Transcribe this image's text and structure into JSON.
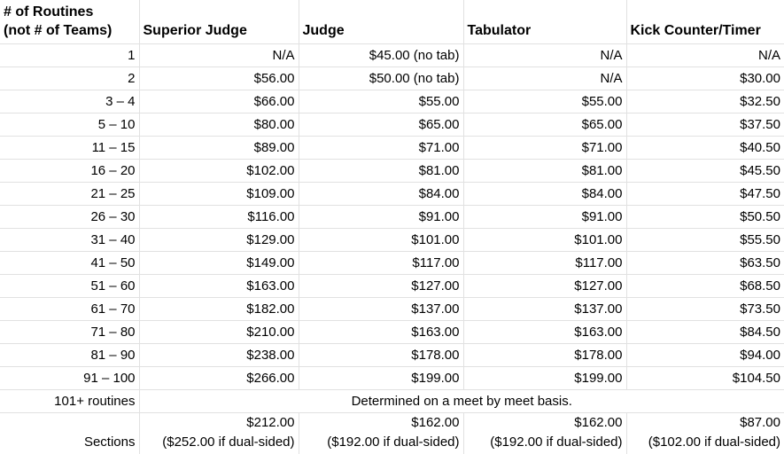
{
  "table": {
    "header": {
      "routines_line1": "# of Routines",
      "routines_line2": "(not # of Teams)",
      "superior_judge": "Superior Judge",
      "judge": "Judge",
      "tabulator": "Tabulator",
      "kick_counter": "Kick Counter/Timer"
    },
    "rows": [
      {
        "range": "1",
        "superior": "N/A",
        "judge": "$45.00 (no tab)",
        "tabulator": "N/A",
        "kick": "N/A"
      },
      {
        "range": "2",
        "superior": "$56.00",
        "judge": "$50.00 (no tab)",
        "tabulator": "N/A",
        "kick": "$30.00"
      },
      {
        "range": "3 – 4",
        "superior": "$66.00",
        "judge": "$55.00",
        "tabulator": "$55.00",
        "kick": "$32.50"
      },
      {
        "range": "5 – 10",
        "superior": "$80.00",
        "judge": "$65.00",
        "tabulator": "$65.00",
        "kick": "$37.50"
      },
      {
        "range": "11 – 15",
        "superior": "$89.00",
        "judge": "$71.00",
        "tabulator": "$71.00",
        "kick": "$40.50"
      },
      {
        "range": "16 – 20",
        "superior": "$102.00",
        "judge": "$81.00",
        "tabulator": "$81.00",
        "kick": "$45.50"
      },
      {
        "range": "21 – 25",
        "superior": "$109.00",
        "judge": "$84.00",
        "tabulator": "$84.00",
        "kick": "$47.50"
      },
      {
        "range": "26 – 30",
        "superior": "$116.00",
        "judge": "$91.00",
        "tabulator": "$91.00",
        "kick": "$50.50"
      },
      {
        "range": "31 – 40",
        "superior": "$129.00",
        "judge": "$101.00",
        "tabulator": "$101.00",
        "kick": "$55.50"
      },
      {
        "range": "41 – 50",
        "superior": "$149.00",
        "judge": "$117.00",
        "tabulator": "$117.00",
        "kick": "$63.50"
      },
      {
        "range": "51 – 60",
        "superior": "$163.00",
        "judge": "$127.00",
        "tabulator": "$127.00",
        "kick": "$68.50"
      },
      {
        "range": "61 – 70",
        "superior": "$182.00",
        "judge": "$137.00",
        "tabulator": "$137.00",
        "kick": "$73.50"
      },
      {
        "range": "71 – 80",
        "superior": "$210.00",
        "judge": "$163.00",
        "tabulator": "$163.00",
        "kick": "$84.50"
      },
      {
        "range": "81 – 90",
        "superior": "$238.00",
        "judge": "$178.00",
        "tabulator": "$178.00",
        "kick": "$94.00"
      },
      {
        "range": "91 – 100",
        "superior": "$266.00",
        "judge": "$199.00",
        "tabulator": "$199.00",
        "kick": "$104.50"
      }
    ],
    "meet_basis_row": {
      "label": "101+ routines",
      "note": "Determined on a meet by meet basis."
    },
    "sections_row": {
      "label": "Sections",
      "fees": [
        {
          "amount": "$212.00",
          "dual": "($252.00 if dual-sided)"
        },
        {
          "amount": "$162.00",
          "dual": "($192.00 if dual-sided)"
        },
        {
          "amount": "$162.00",
          "dual": "($192.00 if dual-sided)"
        },
        {
          "amount": "$87.00",
          "dual": "($102.00 if dual-sided)"
        }
      ]
    },
    "colors": {
      "gridline": "#e1e1e1",
      "text": "#000000",
      "background": "#ffffff"
    }
  }
}
